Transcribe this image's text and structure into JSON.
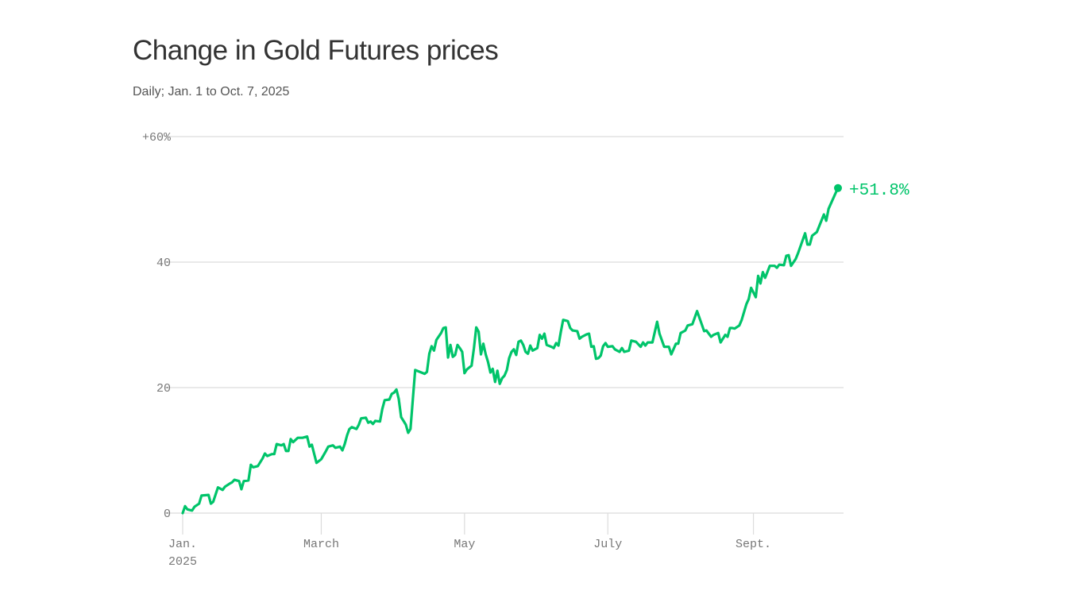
{
  "chart_data": {
    "type": "line",
    "title": "Change in Gold Futures prices",
    "subtitle": "Daily; Jan. 1 to Oct. 7, 2025",
    "xlabel": "",
    "ylabel": "",
    "ylim": [
      0,
      60
    ],
    "xlim": [
      "2025-01-01",
      "2025-10-07"
    ],
    "grid": true,
    "line_color": "#00c46a",
    "y_ticks": [
      {
        "value": 60,
        "label": "+60%"
      },
      {
        "value": 40,
        "label": "40"
      },
      {
        "value": 20,
        "label": "20"
      },
      {
        "value": 0,
        "label": "0"
      }
    ],
    "x_ticks": [
      {
        "date": "2025-01-01",
        "label": "Jan.",
        "sublabel": "2025"
      },
      {
        "date": "2025-03-01",
        "label": "March"
      },
      {
        "date": "2025-05-01",
        "label": "May"
      },
      {
        "date": "2025-07-01",
        "label": "July"
      },
      {
        "date": "2025-09-01",
        "label": "Sept."
      }
    ],
    "end_label": "+51.8%",
    "series": [
      {
        "points": [
          [
            "2025-01-01",
            0
          ],
          [
            "2025-01-02",
            1.1
          ],
          [
            "2025-01-03",
            0.6
          ],
          [
            "2025-01-05",
            0.4
          ],
          [
            "2025-01-06",
            1.0
          ],
          [
            "2025-01-08",
            1.5
          ],
          [
            "2025-01-09",
            2.8
          ],
          [
            "2025-01-12",
            2.9
          ],
          [
            "2025-01-13",
            1.5
          ],
          [
            "2025-01-14",
            1.8
          ],
          [
            "2025-01-16",
            4.1
          ],
          [
            "2025-01-18",
            3.7
          ],
          [
            "2025-01-19",
            4.2
          ],
          [
            "2025-01-21",
            4.7
          ],
          [
            "2025-01-22",
            4.9
          ],
          [
            "2025-01-23",
            5.3
          ],
          [
            "2025-01-25",
            5.1
          ],
          [
            "2025-01-26",
            3.8
          ],
          [
            "2025-01-27",
            5.1
          ],
          [
            "2025-01-29",
            5.2
          ],
          [
            "2025-01-30",
            7.7
          ],
          [
            "2025-01-31",
            7.3
          ],
          [
            "2025-02-02",
            7.5
          ],
          [
            "2025-02-04",
            8.7
          ],
          [
            "2025-02-05",
            9.5
          ],
          [
            "2025-02-06",
            9.1
          ],
          [
            "2025-02-08",
            9.4
          ],
          [
            "2025-02-09",
            9.4
          ],
          [
            "2025-02-10",
            11.0
          ],
          [
            "2025-02-12",
            10.8
          ],
          [
            "2025-02-13",
            11.0
          ],
          [
            "2025-02-14",
            9.9
          ],
          [
            "2025-02-15",
            9.9
          ],
          [
            "2025-02-16",
            11.8
          ],
          [
            "2025-02-17",
            11.3
          ],
          [
            "2025-02-19",
            12.0
          ],
          [
            "2025-02-21",
            12.0
          ],
          [
            "2025-02-23",
            12.2
          ],
          [
            "2025-02-24",
            10.6
          ],
          [
            "2025-02-25",
            10.9
          ],
          [
            "2025-02-26",
            9.4
          ],
          [
            "2025-02-27",
            8.0
          ],
          [
            "2025-03-01",
            8.6
          ],
          [
            "2025-03-03",
            9.9
          ],
          [
            "2025-03-04",
            10.6
          ],
          [
            "2025-03-06",
            10.8
          ],
          [
            "2025-03-07",
            10.4
          ],
          [
            "2025-03-09",
            10.6
          ],
          [
            "2025-03-10",
            10.0
          ],
          [
            "2025-03-11",
            11.0
          ],
          [
            "2025-03-12",
            12.4
          ],
          [
            "2025-03-13",
            13.4
          ],
          [
            "2025-03-14",
            13.7
          ],
          [
            "2025-03-16",
            13.4
          ],
          [
            "2025-03-17",
            14.1
          ],
          [
            "2025-03-18",
            15.1
          ],
          [
            "2025-03-20",
            15.2
          ],
          [
            "2025-03-21",
            14.4
          ],
          [
            "2025-03-22",
            14.6
          ],
          [
            "2025-03-23",
            14.2
          ],
          [
            "2025-03-24",
            14.7
          ],
          [
            "2025-03-26",
            14.6
          ],
          [
            "2025-03-27",
            16.6
          ],
          [
            "2025-03-28",
            18.0
          ],
          [
            "2025-03-30",
            18.1
          ],
          [
            "2025-03-31",
            19.0
          ],
          [
            "2025-04-01",
            19.2
          ],
          [
            "2025-04-02",
            19.7
          ],
          [
            "2025-04-03",
            18.2
          ],
          [
            "2025-04-04",
            15.3
          ],
          [
            "2025-04-05",
            14.7
          ],
          [
            "2025-04-06",
            14.1
          ],
          [
            "2025-04-07",
            12.8
          ],
          [
            "2025-04-08",
            13.4
          ],
          [
            "2025-04-09",
            18.2
          ],
          [
            "2025-04-10",
            22.8
          ],
          [
            "2025-04-14",
            22.2
          ],
          [
            "2025-04-15",
            22.5
          ],
          [
            "2025-04-16",
            25.4
          ],
          [
            "2025-04-17",
            26.6
          ],
          [
            "2025-04-18",
            25.9
          ],
          [
            "2025-04-19",
            27.6
          ],
          [
            "2025-04-21",
            28.7
          ],
          [
            "2025-04-22",
            29.5
          ],
          [
            "2025-04-23",
            29.6
          ],
          [
            "2025-04-24",
            24.8
          ],
          [
            "2025-04-25",
            26.8
          ],
          [
            "2025-04-26",
            24.9
          ],
          [
            "2025-04-27",
            25.2
          ],
          [
            "2025-04-28",
            26.8
          ],
          [
            "2025-04-29",
            26.3
          ],
          [
            "2025-04-30",
            25.7
          ],
          [
            "2025-05-01",
            22.3
          ],
          [
            "2025-05-02",
            22.9
          ],
          [
            "2025-05-04",
            23.5
          ],
          [
            "2025-05-05",
            26.3
          ],
          [
            "2025-05-06",
            29.6
          ],
          [
            "2025-05-07",
            28.9
          ],
          [
            "2025-05-08",
            25.3
          ],
          [
            "2025-05-09",
            27.0
          ],
          [
            "2025-05-10",
            25.3
          ],
          [
            "2025-05-11",
            24.1
          ],
          [
            "2025-05-12",
            22.4
          ],
          [
            "2025-05-13",
            23.0
          ],
          [
            "2025-05-14",
            20.9
          ],
          [
            "2025-05-15",
            22.7
          ],
          [
            "2025-05-16",
            20.6
          ],
          [
            "2025-05-17",
            21.5
          ],
          [
            "2025-05-18",
            21.9
          ],
          [
            "2025-05-19",
            22.8
          ],
          [
            "2025-05-20",
            24.7
          ],
          [
            "2025-05-21",
            25.7
          ],
          [
            "2025-05-22",
            26.1
          ],
          [
            "2025-05-23",
            25.2
          ],
          [
            "2025-05-24",
            27.3
          ],
          [
            "2025-05-25",
            27.5
          ],
          [
            "2025-05-26",
            26.8
          ],
          [
            "2025-05-27",
            25.7
          ],
          [
            "2025-05-28",
            25.4
          ],
          [
            "2025-05-29",
            26.7
          ],
          [
            "2025-05-30",
            25.9
          ],
          [
            "2025-06-01",
            26.3
          ],
          [
            "2025-06-02",
            28.4
          ],
          [
            "2025-06-03",
            27.8
          ],
          [
            "2025-06-04",
            28.6
          ],
          [
            "2025-06-05",
            26.8
          ],
          [
            "2025-06-07",
            26.5
          ],
          [
            "2025-06-08",
            26.3
          ],
          [
            "2025-06-09",
            27.1
          ],
          [
            "2025-06-10",
            26.7
          ],
          [
            "2025-06-11",
            28.9
          ],
          [
            "2025-06-12",
            30.8
          ],
          [
            "2025-06-14",
            30.6
          ],
          [
            "2025-06-15",
            29.5
          ],
          [
            "2025-06-16",
            29.1
          ],
          [
            "2025-06-18",
            29.0
          ],
          [
            "2025-06-19",
            27.8
          ],
          [
            "2025-06-20",
            28.1
          ],
          [
            "2025-06-22",
            28.5
          ],
          [
            "2025-06-23",
            28.6
          ],
          [
            "2025-06-24",
            26.5
          ],
          [
            "2025-06-25",
            26.6
          ],
          [
            "2025-06-26",
            24.6
          ],
          [
            "2025-06-27",
            24.7
          ],
          [
            "2025-06-28",
            25.1
          ],
          [
            "2025-06-29",
            26.6
          ],
          [
            "2025-06-30",
            27.1
          ],
          [
            "2025-07-01",
            26.5
          ],
          [
            "2025-07-03",
            26.6
          ],
          [
            "2025-07-04",
            26.1
          ],
          [
            "2025-07-06",
            25.7
          ],
          [
            "2025-07-07",
            26.3
          ],
          [
            "2025-07-08",
            25.7
          ],
          [
            "2025-07-10",
            25.9
          ],
          [
            "2025-07-11",
            27.5
          ],
          [
            "2025-07-13",
            27.3
          ],
          [
            "2025-07-15",
            26.5
          ],
          [
            "2025-07-16",
            27.2
          ],
          [
            "2025-07-17",
            26.7
          ],
          [
            "2025-07-18",
            27.2
          ],
          [
            "2025-07-20",
            27.2
          ],
          [
            "2025-07-22",
            30.5
          ],
          [
            "2025-07-23",
            28.6
          ],
          [
            "2025-07-25",
            26.5
          ],
          [
            "2025-07-27",
            26.5
          ],
          [
            "2025-07-28",
            25.3
          ],
          [
            "2025-07-30",
            27.0
          ],
          [
            "2025-07-31",
            27.0
          ],
          [
            "2025-08-01",
            28.7
          ],
          [
            "2025-08-03",
            29.1
          ],
          [
            "2025-08-04",
            29.9
          ],
          [
            "2025-08-06",
            30.1
          ],
          [
            "2025-08-08",
            32.2
          ],
          [
            "2025-08-11",
            29.0
          ],
          [
            "2025-08-12",
            29.1
          ],
          [
            "2025-08-14",
            28.1
          ],
          [
            "2025-08-15",
            28.4
          ],
          [
            "2025-08-17",
            28.7
          ],
          [
            "2025-08-18",
            27.2
          ],
          [
            "2025-08-20",
            28.4
          ],
          [
            "2025-08-21",
            28.1
          ],
          [
            "2025-08-22",
            29.5
          ],
          [
            "2025-08-23",
            29.5
          ],
          [
            "2025-08-24",
            29.4
          ],
          [
            "2025-08-26",
            29.9
          ],
          [
            "2025-08-27",
            30.8
          ],
          [
            "2025-08-29",
            33.3
          ],
          [
            "2025-08-30",
            34.1
          ],
          [
            "2025-08-31",
            35.9
          ],
          [
            "2025-09-02",
            34.4
          ],
          [
            "2025-09-03",
            37.8
          ],
          [
            "2025-09-04",
            36.6
          ],
          [
            "2025-09-05",
            38.4
          ],
          [
            "2025-09-06",
            37.5
          ],
          [
            "2025-09-08",
            39.4
          ],
          [
            "2025-09-10",
            39.4
          ],
          [
            "2025-09-11",
            39.1
          ],
          [
            "2025-09-12",
            39.6
          ],
          [
            "2025-09-14",
            39.5
          ],
          [
            "2025-09-15",
            41.0
          ],
          [
            "2025-09-16",
            41.1
          ],
          [
            "2025-09-17",
            39.4
          ],
          [
            "2025-09-19",
            40.5
          ],
          [
            "2025-09-20",
            41.4
          ],
          [
            "2025-09-23",
            44.6
          ],
          [
            "2025-09-24",
            42.8
          ],
          [
            "2025-09-25",
            42.8
          ],
          [
            "2025-09-26",
            44.2
          ],
          [
            "2025-09-28",
            44.8
          ],
          [
            "2025-10-01",
            47.6
          ],
          [
            "2025-10-02",
            46.6
          ],
          [
            "2025-10-03",
            48.5
          ],
          [
            "2025-10-06",
            51.0
          ],
          [
            "2025-10-07",
            51.8
          ]
        ]
      }
    ]
  }
}
